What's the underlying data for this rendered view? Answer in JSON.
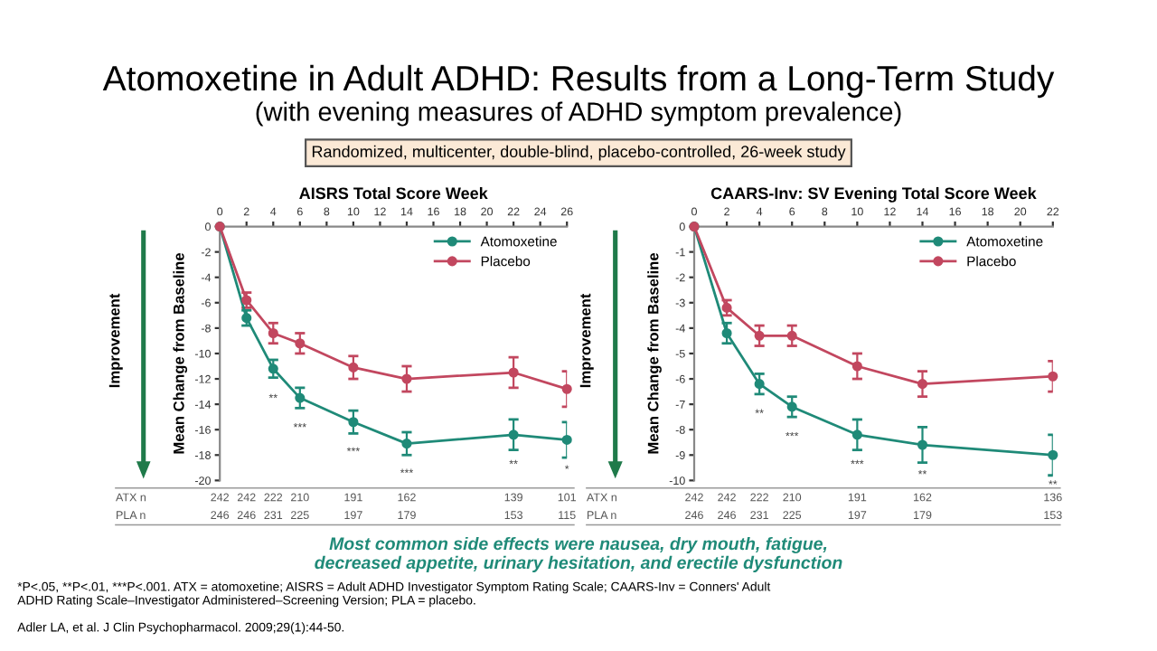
{
  "chart_data": [
    {
      "type": "other",
      "title": "Atomoxetine in Adult ADHD: Results from a Long-Term Study",
      "subtitle": "(with evening measures of ADHD symptom prevalence)",
      "annotations": [
        "Randomized, multicenter, double-blind, placebo-controlled, 26-week study",
        "Most common side effects were nausea, dry mouth, fatigue,\ndecreased appetite, urinary hesitation, and erectile dysfunction",
        "*P<.05, **P<.01, ***P<.001. ATX = atomoxetine; AISRS = Adult ADHD Investigator Symptom Rating Scale; CAARS-Inv = Conners' Adult\nADHD Rating Scale–Investigator Administered–Screening Version; PLA = placebo.",
        "Adler LA, et al. J Clin Psychopharmacol. 2009;29(1):44-50."
      ]
    },
    {
      "type": "line",
      "title": "AISRS Total Score Week",
      "ylabel": "Mean Change from Baseline",
      "x": [
        0,
        2,
        4,
        6,
        10,
        14,
        22,
        26
      ],
      "xlim": [
        0,
        26
      ],
      "xticks": [
        0,
        2,
        4,
        6,
        8,
        10,
        12,
        14,
        16,
        18,
        20,
        22,
        24,
        26
      ],
      "ylim": [
        -20,
        0
      ],
      "yticks": [
        0,
        -2,
        -4,
        -6,
        -8,
        -10,
        -12,
        -14,
        -16,
        -18,
        -20
      ],
      "series": [
        {
          "name": "Atomoxetine",
          "color": "#1f8a78",
          "values": [
            0,
            -7.2,
            -11.2,
            -13.5,
            -15.4,
            -17.1,
            -16.4,
            -16.8
          ],
          "errors": [
            null,
            0.6,
            0.7,
            0.8,
            0.9,
            0.9,
            1.2,
            1.4
          ]
        },
        {
          "name": "Placebo",
          "color": "#c2475f",
          "values": [
            0,
            -5.8,
            -8.4,
            -9.2,
            -11.1,
            -12.0,
            -11.5,
            -12.8
          ],
          "errors": [
            null,
            0.6,
            0.8,
            0.8,
            0.9,
            1.0,
            1.2,
            1.4
          ]
        }
      ],
      "annotations": [
        "Improvement",
        "ATX n 242 242 222 210 191 162 139 101",
        "PLA n 246 246 231 225 197 179 153 115",
        {
          "text": "**",
          "x": 4,
          "y": -11.2
        },
        {
          "text": "***",
          "x": 6,
          "y": -13.5
        },
        {
          "text": "***",
          "x": 10,
          "y": -15.4
        },
        {
          "text": "***",
          "x": 14,
          "y": -17.1
        },
        {
          "text": "**",
          "x": 22,
          "y": -16.4
        },
        {
          "text": "*",
          "x": 26,
          "y": -16.8
        }
      ],
      "legend": "top right",
      "marker": "circle",
      "line_style": "solid",
      "grid": false
    },
    {
      "type": "line",
      "title": "CAARS-Inv: SV Evening Total Score Week",
      "ylabel": "Mean Change from Baseline",
      "x": [
        0,
        2,
        4,
        6,
        10,
        14,
        22
      ],
      "xlim": [
        0,
        22
      ],
      "xticks": [
        0,
        2,
        4,
        6,
        8,
        10,
        12,
        14,
        16,
        18,
        20,
        22
      ],
      "ylim": [
        -10,
        0
      ],
      "yticks": [
        0,
        -1,
        -2,
        -3,
        -4,
        -5,
        -6,
        -7,
        -8,
        -9,
        -10
      ],
      "series": [
        {
          "name": "Atomoxetine",
          "color": "#1f8a78",
          "values": [
            0,
            -4.2,
            -6.2,
            -7.1,
            -8.2,
            -8.6,
            -9.0
          ],
          "errors": [
            null,
            0.4,
            0.4,
            0.4,
            0.6,
            0.7,
            0.8
          ]
        },
        {
          "name": "Placebo",
          "color": "#c2475f",
          "values": [
            0,
            -3.2,
            -4.3,
            -4.3,
            -5.5,
            -6.2,
            -5.9
          ],
          "errors": [
            null,
            0.3,
            0.4,
            0.4,
            0.5,
            0.5,
            0.6
          ]
        }
      ],
      "annotations": [
        "Improvement",
        "ATX n 242 242 222 210 191 162 136",
        "PLA n 246 246 231 225 197 179 153",
        {
          "text": "**",
          "x": 4,
          "y": -6.2
        },
        {
          "text": "***",
          "x": 6,
          "y": -7.1
        },
        {
          "text": "***",
          "x": 10,
          "y": -8.2
        },
        {
          "text": "**",
          "x": 14,
          "y": -8.6
        },
        {
          "text": "**",
          "x": 22,
          "y": -9.0
        }
      ],
      "legend": "top right",
      "marker": "circle",
      "line_style": "solid",
      "grid": false
    }
  ]
}
